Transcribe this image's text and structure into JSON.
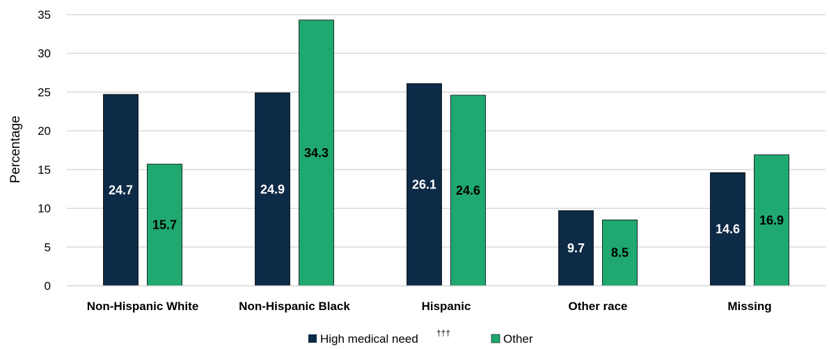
{
  "chart_data": {
    "type": "bar",
    "ylabel": "Percentage",
    "ylim": [
      0,
      35
    ],
    "yticks": [
      0,
      5,
      10,
      15,
      20,
      25,
      30,
      35
    ],
    "grid": true,
    "legend_position": "bottom",
    "categories": [
      "Non-Hispanic White",
      "Non-Hispanic Black",
      "Hispanic",
      "Other race",
      "Missing"
    ],
    "series": [
      {
        "name": "High medical need",
        "name_superscript": "†††",
        "color": "#0d2a47",
        "label_color": "#ffffff",
        "values": [
          24.7,
          24.9,
          26.1,
          9.7,
          14.6
        ]
      },
      {
        "name": "Other",
        "color": "#1fa86f",
        "label_color": "#000000",
        "values": [
          15.7,
          34.3,
          24.6,
          8.5,
          16.9
        ]
      }
    ]
  }
}
